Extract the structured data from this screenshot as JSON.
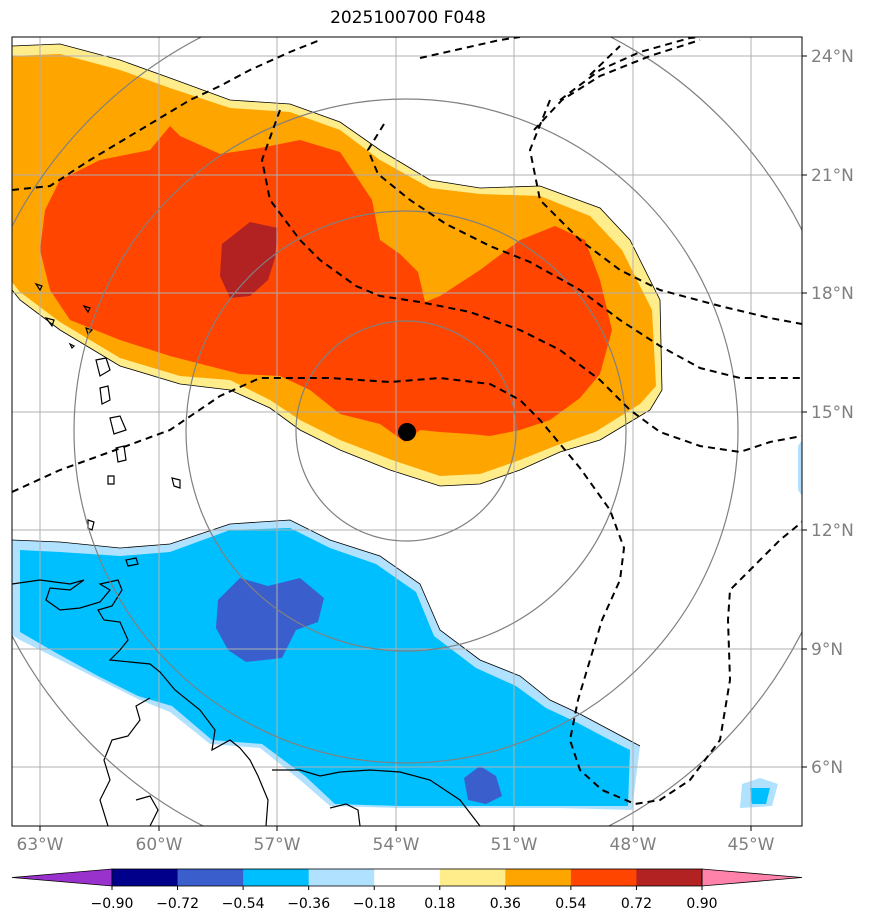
{
  "title": "2025100700 F048",
  "lat_labels": [
    "24°N",
    "21°N",
    "18°N",
    "15°N",
    "12°N",
    "9°N",
    "6°N"
  ],
  "lon_labels": [
    "63°W",
    "60°W",
    "57°W",
    "54°W",
    "51°W",
    "48°W",
    "45°W"
  ],
  "colorbar": {
    "colors": [
      "#9932cc",
      "#00008b",
      "#3a5fcd",
      "#00bfff",
      "#b0e2ff",
      "#ffffff",
      "#ffec8b",
      "#ffa500",
      "#ff4500",
      "#b22222",
      "#ff82ab"
    ],
    "ticks": [
      "−0.90",
      "−0.72",
      "−0.54",
      "−0.36",
      "−0.18",
      "0.18",
      "0.36",
      "0.54",
      "0.72",
      "0.90"
    ]
  },
  "legend_colors": {
    "positive_light": "#ffec8b",
    "positive_mid": "#ffa500",
    "positive_high": "#ff4500",
    "positive_max": "#b22222",
    "negative_light": "#b0e2ff",
    "negative_mid": "#00bfff",
    "negative_high": "#3a5fcd"
  },
  "storm_center": {
    "lat": 14.5,
    "lon": -53.8
  }
}
